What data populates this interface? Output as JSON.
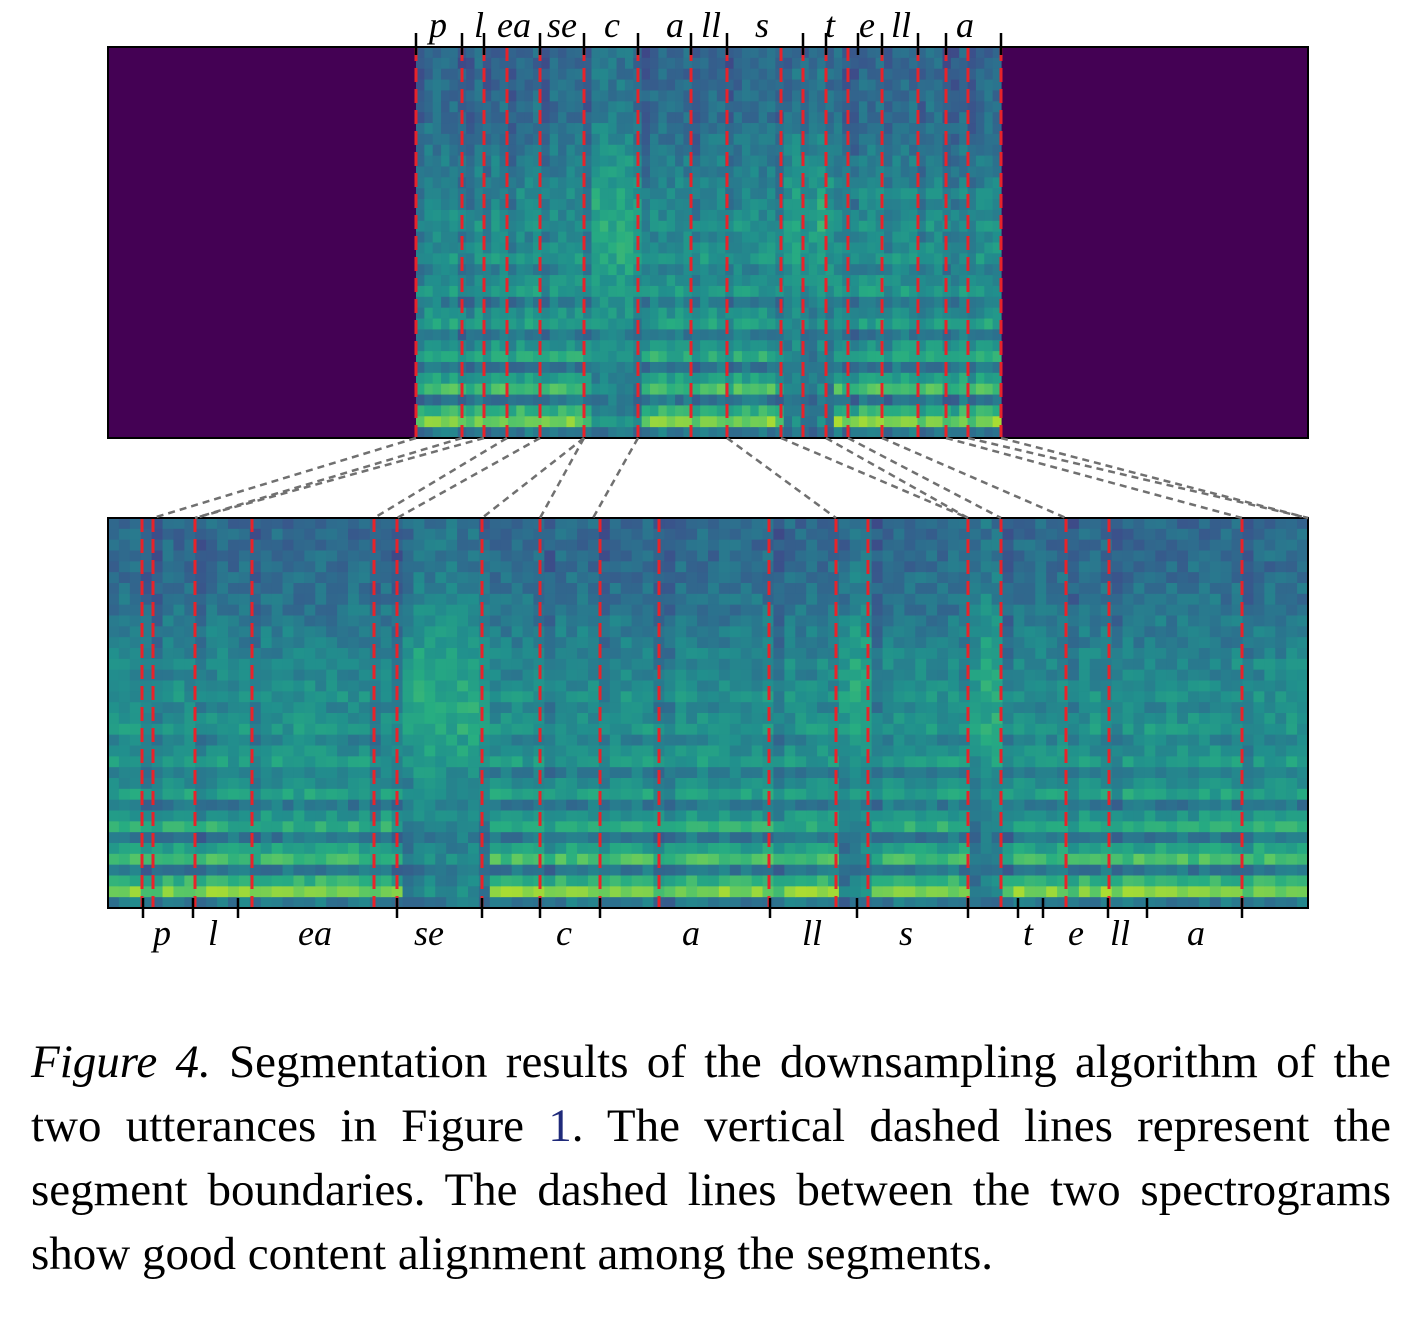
{
  "figure": {
    "top_labels": [
      "p",
      "l",
      "ea",
      "se",
      "c",
      "a",
      "ll",
      "s",
      "t",
      "e",
      "ll",
      "a"
    ],
    "bottom_labels": [
      "p",
      "l",
      "ea",
      "se",
      "c",
      "a",
      "ll",
      "s",
      "t",
      "e",
      "ll",
      "a"
    ],
    "colors": {
      "background_pad": "#440154",
      "boundary_line": "#e8232a",
      "alignment_line": "#707070",
      "viridis": [
        "#440154",
        "#472c7a",
        "#3b518b",
        "#2c718e",
        "#21908d",
        "#27ad81",
        "#5cc863",
        "#aadc32",
        "#fde725"
      ]
    }
  },
  "caption": {
    "label": "Figure 4.",
    "text_before_ref": " Segmentation results of the downsampling algorithm of the two utterances in Figure ",
    "ref": "1",
    "text_after_ref": ".  The vertical dashed lines represent the segment boundaries. The dashed lines between the two spectrograms show good content alignment among the segments."
  }
}
